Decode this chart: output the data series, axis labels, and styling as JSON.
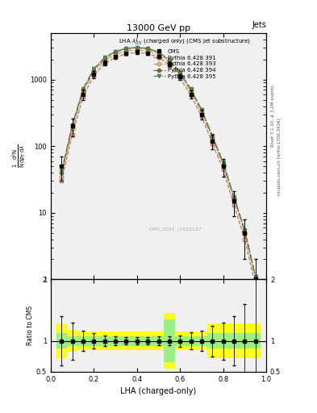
{
  "title": "13000 GeV pp",
  "title_right": "Jets",
  "legend_title": "LHA $\\lambda^{1}_{0.5}$ (charged only) (CMS jet substructure)",
  "xlabel": "LHA (charged-only)",
  "ylabel": "$\\frac{1}{\\mathrm{N}} \\frac{\\mathrm{d}^2 N}{\\mathrm{d} p_T \\mathrm{d}\\lambda}$",
  "watermark": "CMS_2021_I1920187",
  "rivet_label": "Rivet 3.1.10, ≥ 3.2M events",
  "arxiv_label": "mcplots.cern.ch [arXiv:1306.3436]",
  "cms_label": "CMS",
  "lha_x": [
    0.05,
    0.1,
    0.15,
    0.2,
    0.25,
    0.3,
    0.35,
    0.4,
    0.45,
    0.5,
    0.55,
    0.6,
    0.65,
    0.7,
    0.75,
    0.8,
    0.85,
    0.9,
    0.95
  ],
  "cms_y": [
    50,
    200,
    600,
    1200,
    1800,
    2200,
    2500,
    2600,
    2500,
    2200,
    1700,
    1100,
    600,
    300,
    120,
    50,
    15,
    5,
    1
  ],
  "cms_yerr": [
    20,
    60,
    100,
    150,
    150,
    150,
    150,
    150,
    150,
    150,
    120,
    100,
    80,
    50,
    30,
    15,
    6,
    3,
    1
  ],
  "p391_y": [
    30,
    150,
    550,
    1150,
    1750,
    2150,
    2450,
    2550,
    2480,
    2180,
    1650,
    1050,
    580,
    280,
    110,
    45,
    13,
    4,
    0.8
  ],
  "p393_y": [
    35,
    180,
    650,
    1300,
    1950,
    2400,
    2700,
    2800,
    2720,
    2400,
    1820,
    1180,
    660,
    320,
    130,
    52,
    16,
    5,
    1
  ],
  "p394_y": [
    40,
    200,
    700,
    1400,
    2100,
    2600,
    2900,
    3000,
    2900,
    2550,
    1950,
    1260,
    710,
    350,
    140,
    56,
    17,
    5.5,
    1.1
  ],
  "p395_y": [
    42,
    210,
    730,
    1450,
    2150,
    2650,
    2950,
    3050,
    2950,
    2600,
    1980,
    1280,
    720,
    355,
    143,
    57,
    17.5,
    5.5,
    1.1
  ],
  "color_391": "#c87070",
  "color_393": "#b8a050",
  "color_394": "#806040",
  "color_395": "#508050",
  "ylim_main": [
    1,
    5000
  ],
  "ylim_ratio": [
    0.5,
    2.0
  ],
  "xlim": [
    0.0,
    1.0
  ],
  "bg_color": "#f0f0f0"
}
